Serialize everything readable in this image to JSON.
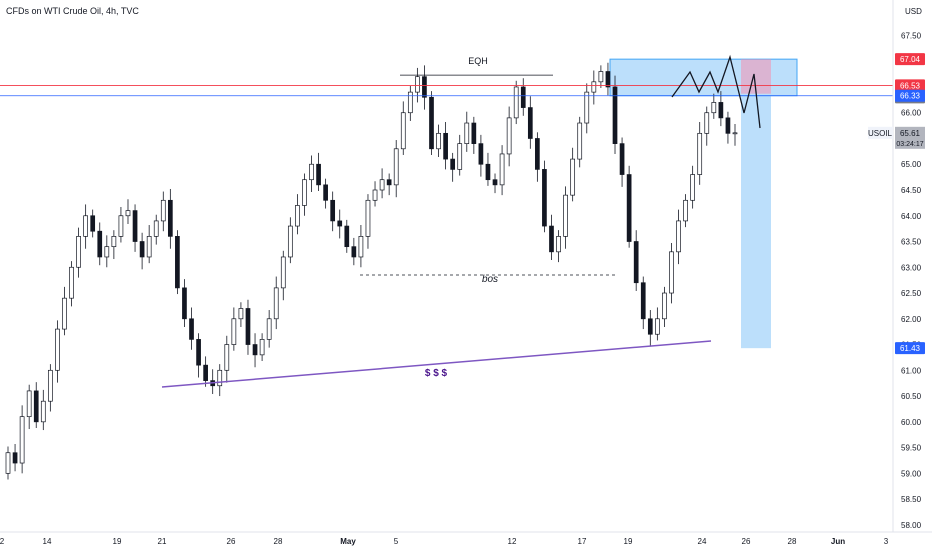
{
  "header": {
    "title": "CFDs on WTI Crude Oil, 4h, TVC"
  },
  "axis": {
    "currency": "USD",
    "y_ticks": [
      "58.00",
      "58.50",
      "59.00",
      "59.50",
      "60.00",
      "60.50",
      "61.00",
      "61.50",
      "62.00",
      "62.50",
      "63.00",
      "63.50",
      "64.00",
      "64.50",
      "65.00",
      "65.50",
      "66.00",
      "66.50",
      "67.00",
      "67.50"
    ],
    "x_ticks": [
      "2",
      "14",
      "19",
      "21",
      "26",
      "28",
      "May",
      "5",
      "12",
      "17",
      "19",
      "24",
      "26",
      "28",
      "Jun",
      "3"
    ]
  },
  "labels": {
    "eqh": "EQH",
    "bos": "bos",
    "liquidity": "$ $ $",
    "symbol": "USOIL",
    "current_price": "65.61",
    "countdown": "03:24:17"
  },
  "price_tags": [
    {
      "value": "67.04",
      "color": "#f23645"
    },
    {
      "value": "66.53",
      "color": "#f23645"
    },
    {
      "value": "66.53",
      "color": "#787b86"
    },
    {
      "value": "66.33",
      "color": "#2962ff"
    },
    {
      "value": "61.43",
      "color": "#2962ff"
    }
  ],
  "colors": {
    "up": "#131722",
    "down": "#131722",
    "red_line": "#f23645",
    "blue_line": "#2962ff",
    "support": "#7e57c2",
    "zone": "#90caf9"
  },
  "chart_data": {
    "type": "candlestick",
    "title": "CFDs on WTI Crude Oil, 4h, TVC",
    "ylim": [
      57.9,
      67.8
    ],
    "levels": {
      "resistance_red": 66.53,
      "resistance_blue": 66.33,
      "eqh": 66.73,
      "bos": 62.85,
      "target": 61.43,
      "zone_top": 67.04,
      "zone_bottom": 66.33
    },
    "close": [
      59.4,
      59.2,
      60.1,
      60.6,
      60.0,
      60.4,
      61.0,
      61.8,
      62.4,
      63.0,
      63.6,
      64.0,
      63.7,
      63.2,
      63.4,
      63.6,
      64.0,
      64.1,
      63.5,
      63.2,
      63.6,
      63.9,
      64.3,
      63.6,
      62.6,
      62.0,
      61.6,
      61.1,
      60.8,
      60.7,
      61.0,
      61.5,
      62.0,
      62.2,
      61.5,
      61.3,
      61.6,
      62.0,
      62.6,
      63.2,
      63.8,
      64.2,
      64.7,
      65.0,
      64.6,
      64.3,
      63.9,
      63.8,
      63.4,
      63.2,
      63.6,
      64.3,
      64.5,
      64.7,
      64.6,
      65.3,
      66.0,
      66.4,
      66.7,
      66.3,
      65.3,
      65.6,
      65.1,
      64.9,
      65.4,
      65.8,
      65.4,
      65.0,
      64.7,
      64.6,
      65.2,
      65.9,
      66.5,
      66.1,
      65.5,
      64.9,
      63.8,
      63.3,
      63.6,
      64.4,
      65.1,
      65.8,
      66.4,
      66.6,
      66.8,
      66.5,
      65.4,
      64.8,
      63.5,
      62.7,
      62.0,
      61.7,
      62.0,
      62.5,
      63.3,
      63.9,
      64.3,
      64.8,
      65.6,
      66.0,
      66.2,
      65.9,
      65.6,
      65.61
    ]
  }
}
